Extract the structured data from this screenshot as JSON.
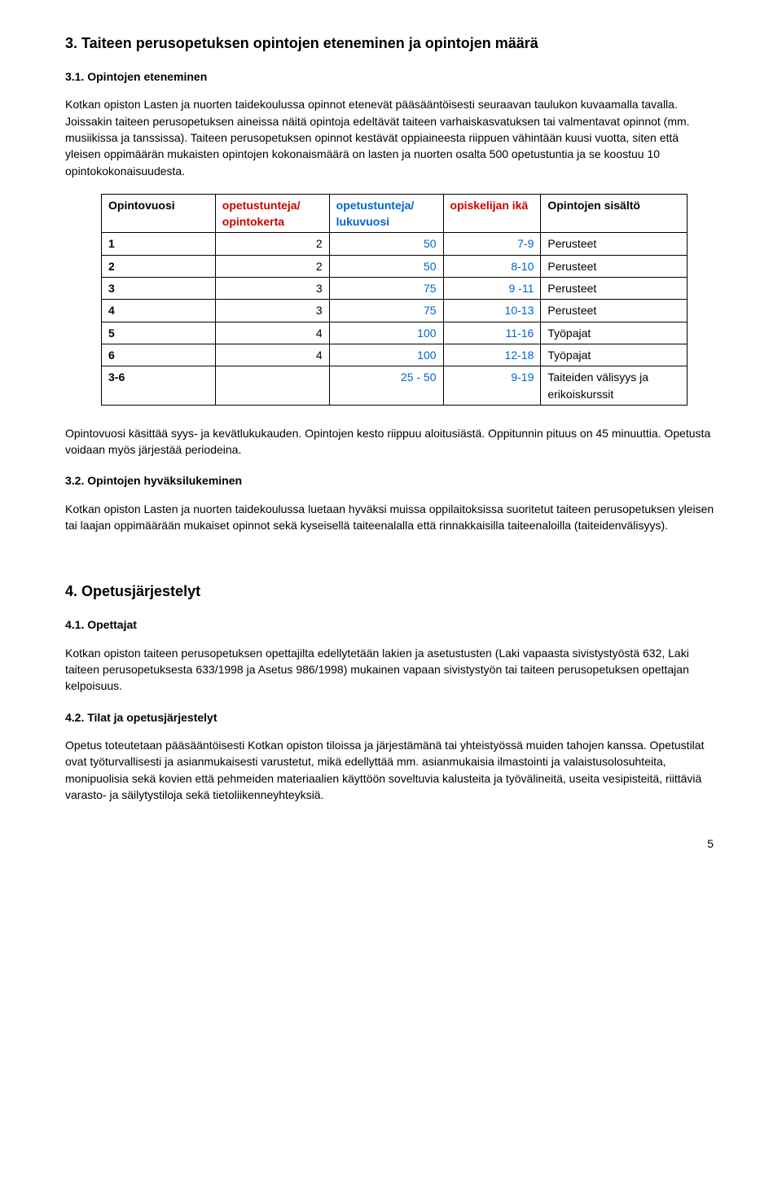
{
  "section3": {
    "title": "3. Taiteen perusopetuksen opintojen eteneminen ja opintojen määrä",
    "sub31": {
      "title": "3.1. Opintojen eteneminen",
      "para": "Kotkan opiston Lasten ja nuorten taidekoulussa opinnot etenevät pääsääntöisesti seuraavan taulukon kuvaamalla tavalla. Joissakin taiteen perusopetuksen aineissa näitä opintoja edeltävät taiteen varhaiskasvatuksen tai valmentavat opinnot (mm. musiikissa ja tanssissa). Taiteen perusopetuksen opinnot kestävät oppiaineesta riippuen vähintään kuusi vuotta, siten että yleisen oppimäärän mukaisten opintojen kokonaismäärä on lasten ja nuorten osalta 500 opetustuntia ja se koostuu 10 opintokokonaisuudesta."
    },
    "table": {
      "columns": [
        "Opintovuosi",
        "opetustunteja/ opintokerta",
        "opetustunteja/ lukuvuosi",
        "opiskelijan ikä",
        "Opintojen sisältö"
      ],
      "header_colors": [
        "#000000",
        "#cc0000",
        "#0066cc",
        "#cc0000",
        "#000000"
      ],
      "col_widths": [
        "140px",
        "140px",
        "140px",
        "120px",
        "180px"
      ],
      "rows": [
        {
          "c0": "1",
          "c1": "2",
          "c2": "50",
          "c3": "7-9",
          "c4": "Perusteet"
        },
        {
          "c0": "2",
          "c1": "2",
          "c2": "50",
          "c3": "8-10",
          "c4": "Perusteet"
        },
        {
          "c0": "3",
          "c1": "3",
          "c2": "75",
          "c3": "9 -11",
          "c4": "Perusteet"
        },
        {
          "c0": "4",
          "c1": "3",
          "c2": "75",
          "c3": "10-13",
          "c4": "Perusteet"
        },
        {
          "c0": "5",
          "c1": "4",
          "c2": "100",
          "c3": "11-16",
          "c4": "Työpajat"
        },
        {
          "c0": "6",
          "c1": "4",
          "c2": "100",
          "c3": "12-18",
          "c4": "Työpajat"
        },
        {
          "c0": "3-6",
          "c1": "",
          "c2": "25 - 50",
          "c3": "9-19",
          "c4": "Taiteiden välisyys ja erikoiskurssit"
        }
      ],
      "blue_col_indexes": [
        2,
        3
      ]
    },
    "after_table_para": "Opintovuosi käsittää syys- ja kevätlukukauden. Opintojen kesto riippuu aloitusiästä. Oppitunnin pituus on 45 minuuttia. Opetusta voidaan myös järjestää periodeina.",
    "sub32": {
      "title": "3.2. Opintojen hyväksilukeminen",
      "para": "Kotkan opiston Lasten ja nuorten taidekoulussa luetaan hyväksi muissa oppilaitoksissa suoritetut taiteen perusopetuksen yleisen tai laajan oppimäärään mukaiset opinnot sekä kyseisellä taiteenalalla että rinnakkaisilla taiteenaloilla (taiteidenvälisyys)."
    }
  },
  "section4": {
    "title": "4. Opetusjärjestelyt",
    "sub41": {
      "title": "4.1. Opettajat",
      "para": "Kotkan opiston taiteen perusopetuksen opettajilta edellytetään lakien ja asetustusten (Laki vapaasta sivistystyöstä 632, Laki taiteen perusopetuksesta 633/1998 ja Asetus 986/1998) mukainen vapaan sivistystyön tai taiteen perusopetuksen opettajan kelpoisuus."
    },
    "sub42": {
      "title": "4.2. Tilat ja opetusjärjestelyt",
      "para": "Opetus toteutetaan pääsääntöisesti Kotkan opiston tiloissa ja järjestämänä tai yhteistyössä muiden tahojen kanssa. Opetustilat ovat työturvallisesti ja asianmukaisesti varustetut, mikä edellyttää mm. asianmukaisia ilmastointi ja valaistusolosuhteita, monipuolisia sekä kovien että pehmeiden materiaalien käyttöön soveltuvia kalusteita ja työvälineitä, useita vesipisteitä, riittäviä varasto- ja säilytystiloja sekä tietoliikenneyhteyksiä."
    }
  },
  "page_number": "5"
}
